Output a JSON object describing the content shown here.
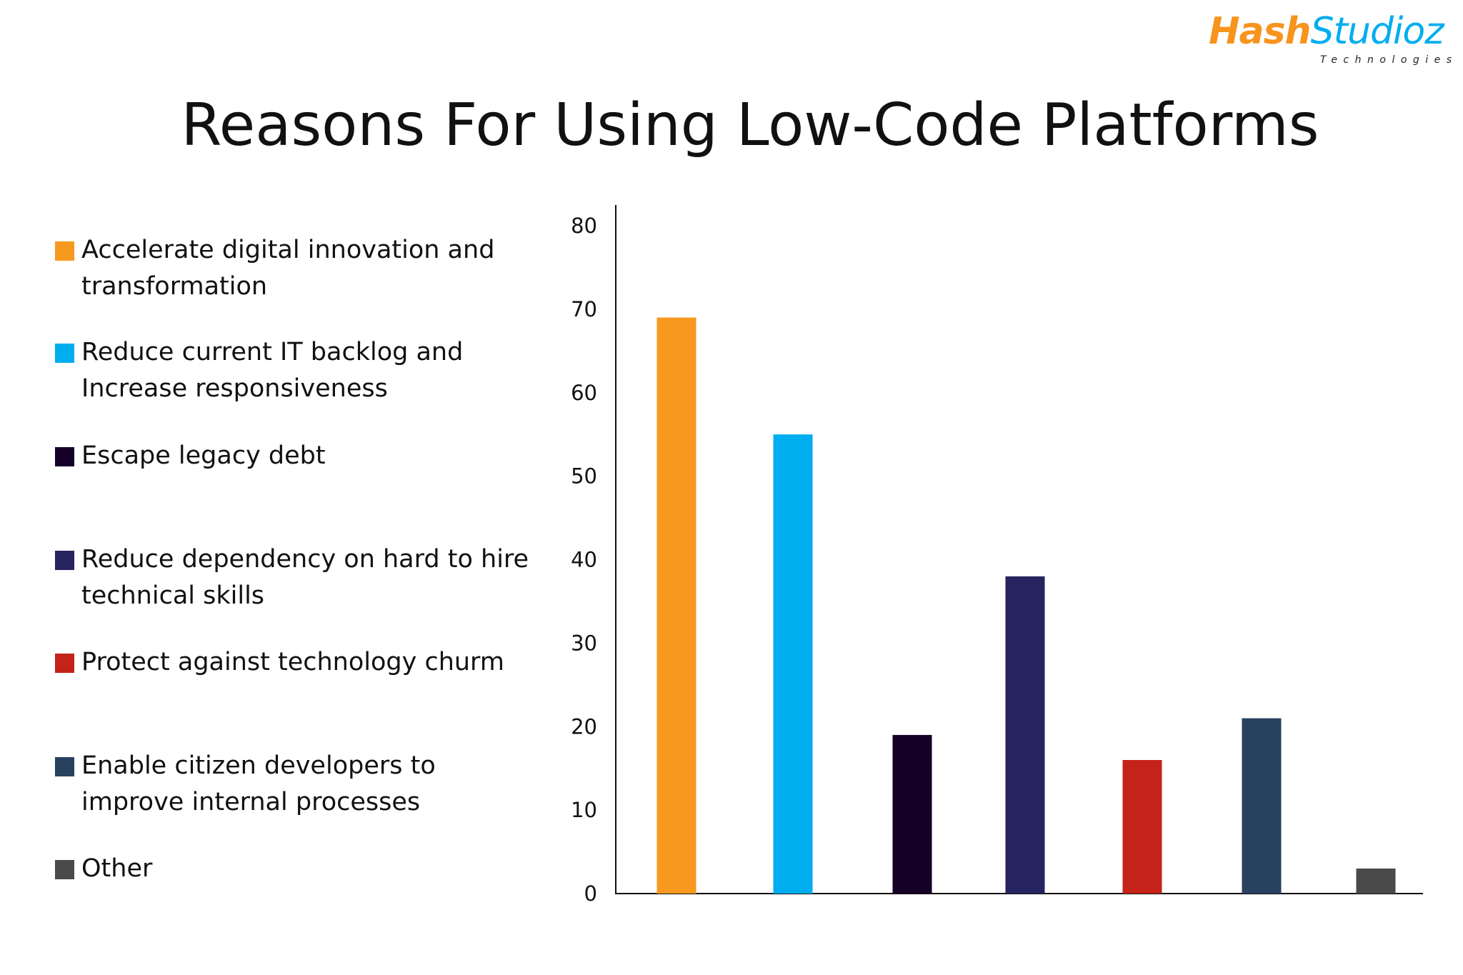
{
  "logo": {
    "brand_part1": "Hash",
    "brand_part2": "Studioz",
    "tagline": "Technologies"
  },
  "chart_data": {
    "type": "bar",
    "title": "Reasons For Using Low-Code Platforms",
    "categories": [
      "Accelerate digital innovation and transformation",
      "Reduce current IT backlog and Increase responsiveness",
      "Escape legacy debt",
      "Reduce dependency on hard to hire technical skills",
      "Protect against technology churm",
      "Enable citizen developers to improve internal processes",
      "Other"
    ],
    "values": [
      69,
      55,
      19,
      38,
      16,
      21,
      3
    ],
    "colors": [
      "#f7991f",
      "#00aeef",
      "#150128",
      "#26245e",
      "#c52219",
      "#27415f",
      "#4a4a4a"
    ],
    "xlabel": "",
    "ylabel": "",
    "ylim": [
      0,
      80
    ],
    "yticks": [
      "0",
      "10",
      "20",
      "30",
      "40",
      "50",
      "60",
      "70",
      "80"
    ],
    "grid": false,
    "legend_position": "left"
  }
}
